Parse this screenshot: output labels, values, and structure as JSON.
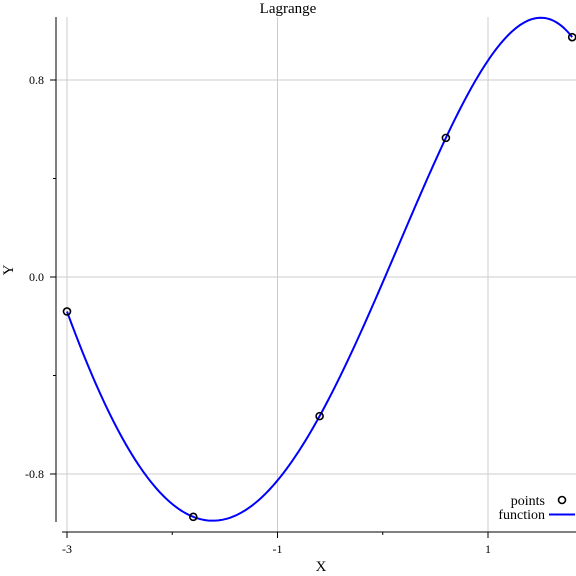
{
  "chart_data": {
    "type": "line",
    "title": "Lagrange",
    "xlabel": "X",
    "ylabel": "Y",
    "xlim": [
      -3.0,
      1.85
    ],
    "ylim": [
      -1.0,
      1.05
    ],
    "x_ticks": [
      -3,
      -1,
      1
    ],
    "x_tick_labels": [
      "-3",
      "-1",
      "1"
    ],
    "x_minor_ticks": [
      -2,
      0
    ],
    "y_ticks": [
      0.8,
      0.0,
      -0.8
    ],
    "y_tick_labels": [
      "0.8",
      "0.0",
      "-0.8"
    ],
    "y_minor_ticks": [
      0.4,
      -0.4
    ],
    "grid": true,
    "legend_position": "bottom-right",
    "series": [
      {
        "name": "points",
        "style": "markers",
        "color": "#000000",
        "x": [
          -3.0,
          -1.8,
          -0.6,
          0.6,
          1.8
        ],
        "y": [
          -0.14,
          -0.974,
          -0.565,
          0.565,
          0.974
        ]
      },
      {
        "name": "function",
        "style": "line",
        "color": "#0000ff",
        "x": [
          -3.0,
          -2.9,
          -2.8,
          -2.7,
          -2.6,
          -2.5,
          -2.4,
          -2.3,
          -2.2,
          -2.1,
          -2.0,
          -1.9,
          -1.8,
          -1.7,
          -1.6,
          -1.5,
          -1.4,
          -1.3,
          -1.2,
          -1.1,
          -1.0,
          -0.9,
          -0.8,
          -0.7,
          -0.6,
          -0.5,
          -0.4,
          -0.3,
          -0.2,
          -0.1,
          0.0,
          0.1,
          0.2,
          0.3,
          0.4,
          0.5,
          0.6,
          0.7,
          0.8,
          0.9,
          1.0,
          1.1,
          1.2,
          1.3,
          1.4,
          1.5,
          1.6,
          1.7,
          1.8
        ],
        "y": [
          -0.14,
          -0.306,
          -0.453,
          -0.581,
          -0.692,
          -0.785,
          -0.861,
          -0.919,
          -0.958,
          -0.977,
          -0.985,
          -0.984,
          -0.974,
          -0.956,
          -0.931,
          -0.9,
          -0.864,
          -0.823,
          -0.777,
          -0.727,
          -0.674,
          -0.619,
          -0.561,
          -0.503,
          -0.565,
          -0.48,
          -0.387,
          -0.29,
          -0.194,
          -0.097,
          0.0,
          0.097,
          0.194,
          0.29,
          0.385,
          0.476,
          0.565,
          0.652,
          0.737,
          0.817,
          0.89,
          0.953,
          1.002,
          1.033,
          1.045,
          1.043,
          1.029,
          1.006,
          0.974
        ]
      }
    ]
  }
}
